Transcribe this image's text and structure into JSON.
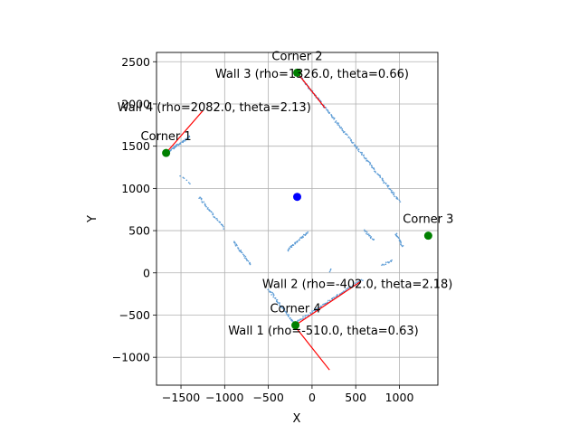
{
  "chart_data": {
    "type": "scatter",
    "xlabel": "X",
    "ylabel": "Y",
    "xlim": [
      -1780,
      1440
    ],
    "ylim": [
      -1330,
      2610
    ],
    "grid": true,
    "x_ticks": [
      -1500,
      -1000,
      -500,
      0,
      500,
      1000
    ],
    "x_tick_labels": [
      "−1500",
      "−1000",
      "−500",
      "0",
      "500",
      "1000"
    ],
    "y_ticks": [
      -1000,
      -500,
      0,
      500,
      1000,
      1500,
      2000,
      2500
    ],
    "y_tick_labels": [
      "−1000",
      "−500",
      "0",
      "500",
      "1000",
      "1500",
      "2000",
      "2500"
    ],
    "colors": {
      "points": "#5b9bd5",
      "lines": "#ff0000",
      "corners": "#008000",
      "center": "#0000ff"
    },
    "center": {
      "x": -170,
      "y": 900
    },
    "corners": [
      {
        "label": "Corner 1",
        "x": -1670,
        "y": 1420
      },
      {
        "label": "Corner 2",
        "x": -170,
        "y": 2370
      },
      {
        "label": "Corner 3",
        "x": 1330,
        "y": 440
      },
      {
        "label": "Corner 4",
        "x": -190,
        "y": -620
      }
    ],
    "walls": [
      {
        "label": "Wall 1 (rho=-510.0, theta=0.63)",
        "x1": -190,
        "y1": -640,
        "x2": 200,
        "y2": -1150,
        "lx": 130,
        "ly": -680
      },
      {
        "label": "Wall 2 (rho=-402.0, theta=2.18)",
        "x1": -190,
        "y1": -620,
        "x2": 560,
        "y2": -100,
        "lx": 520,
        "ly": -130
      },
      {
        "label": "Wall 3 (rho=1326.0, theta=0.66)",
        "x1": -170,
        "y1": 2370,
        "x2": 150,
        "y2": 1950,
        "lx": 0,
        "ly": 2360
      },
      {
        "label": "Wall 4 (rho=2082.0, theta=2.13)",
        "x1": -1670,
        "y1": 1420,
        "x2": -1250,
        "y2": 1920,
        "lx": -1120,
        "ly": 1960
      }
    ],
    "point_segments": [
      {
        "x1": -1670,
        "y1": 1420,
        "x2": -1400,
        "y2": 1610,
        "n": 45
      },
      {
        "x1": -1500,
        "y1": 1150,
        "x2": -1390,
        "y2": 1050,
        "n": 6
      },
      {
        "x1": -1290,
        "y1": 900,
        "x2": -1010,
        "y2": 530,
        "n": 40
      },
      {
        "x1": -900,
        "y1": 370,
        "x2": -700,
        "y2": 100,
        "n": 30
      },
      {
        "x1": -280,
        "y1": 270,
        "x2": -50,
        "y2": 480,
        "n": 40
      },
      {
        "x1": -500,
        "y1": -190,
        "x2": -200,
        "y2": -600,
        "n": 50
      },
      {
        "x1": -200,
        "y1": -600,
        "x2": 570,
        "y2": -80,
        "n": 80
      },
      {
        "x1": -170,
        "y1": 2370,
        "x2": 1000,
        "y2": 850,
        "n": 170
      },
      {
        "x1": 600,
        "y1": 500,
        "x2": 700,
        "y2": 390,
        "n": 15
      },
      {
        "x1": 800,
        "y1": 90,
        "x2": 920,
        "y2": 150,
        "n": 12
      },
      {
        "x1": 960,
        "y1": 470,
        "x2": 1000,
        "y2": 380,
        "n": 12
      },
      {
        "x1": 1000,
        "y1": 380,
        "x2": 1040,
        "y2": 320,
        "n": 8
      },
      {
        "x1": 210,
        "y1": 40,
        "x2": 210,
        "y2": 20,
        "n": 3
      }
    ]
  }
}
